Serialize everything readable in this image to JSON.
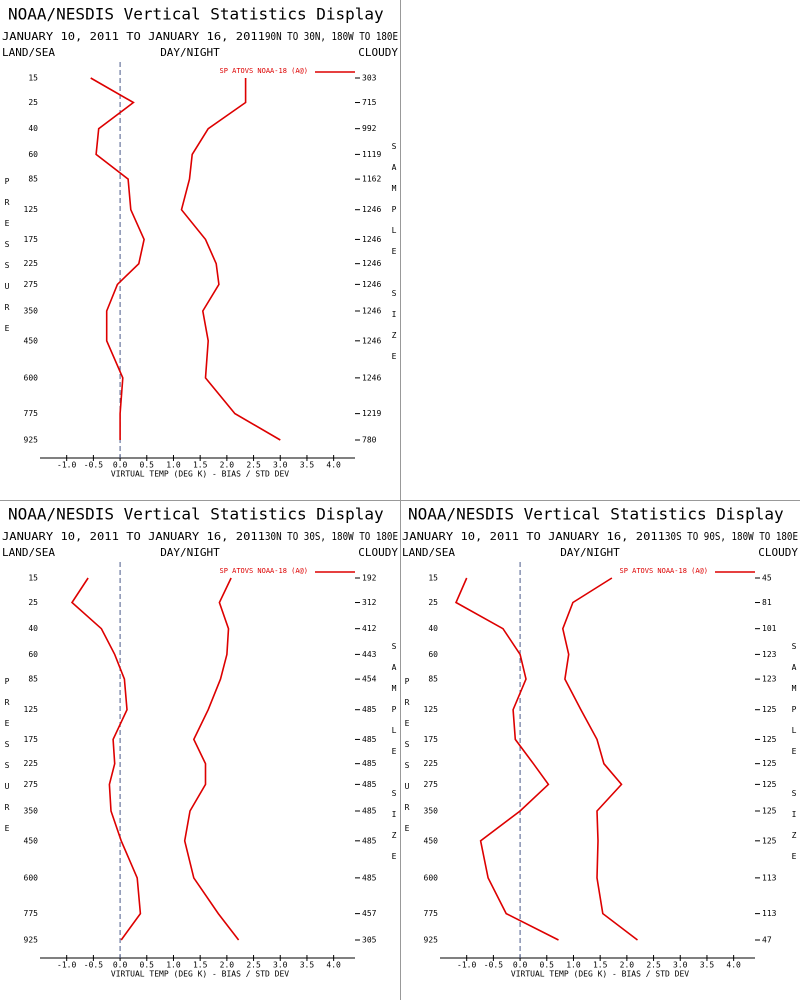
{
  "chart_data": [
    {
      "type": "line",
      "title": "NOAA/NESDIS Vertical Statistics Display",
      "date_range": "JANUARY 10, 2011 TO JANUARY 16, 2011",
      "region": "90N TO 30N, 180W TO 180E",
      "left_label": "LAND/SEA",
      "center_label": "DAY/NIGHT",
      "right_label": "CLOUDY",
      "y_label": "PRESSURE",
      "y2_label": "SAMPLE SIZE",
      "x_label": "VIRTUAL TEMP (DEG K) - BIAS / STD DEV",
      "categories": [
        15,
        25,
        40,
        60,
        85,
        125,
        175,
        225,
        275,
        350,
        450,
        600,
        775,
        925
      ],
      "sample_size": [
        303,
        715,
        992,
        1119,
        1162,
        1246,
        1246,
        1246,
        1246,
        1246,
        1246,
        1246,
        1219,
        780
      ],
      "series": [
        {
          "name": "SP ATOVS NOAA-18 (A@)",
          "color": "#dd0000",
          "values": [
            -0.55,
            0.25,
            -0.4,
            -0.45,
            0.15,
            0.2,
            0.45,
            0.35,
            -0.05,
            -0.25,
            -0.25,
            0.05,
            0.0,
            0.0
          ]
        },
        {
          "color": "#dd0000",
          "values": [
            2.35,
            2.35,
            1.65,
            1.35,
            1.3,
            1.15,
            1.6,
            1.8,
            1.85,
            1.55,
            1.65,
            1.6,
            2.15,
            3.0
          ]
        }
      ],
      "xlim": [
        -1.5,
        4.4
      ],
      "xticks": [
        {
          "value": -1,
          "label": "-1.0"
        },
        -0.5,
        {
          "value": 0,
          "label": "0.0"
        },
        0.5,
        {
          "value": 1,
          "label": "1.0"
        },
        1.5,
        {
          "value": 2,
          "label": "2.0"
        },
        2.5,
        {
          "value": 3,
          "label": "3.0"
        },
        3.5,
        {
          "value": 4,
          "label": "4.0"
        }
      ]
    },
    {
      "type": "line",
      "title": "NOAA/NESDIS Vertical Statistics Display",
      "date_range": "JANUARY 10, 2011 TO JANUARY 16, 2011",
      "region": "30N TO 30S, 180W TO 180E",
      "left_label": "LAND/SEA",
      "center_label": "DAY/NIGHT",
      "right_label": "CLOUDY",
      "y_label": "PRESSURE",
      "y2_label": "SAMPLE SIZE",
      "x_label": "VIRTUAL TEMP (DEG K) - BIAS / STD DEV",
      "categories": [
        15,
        25,
        40,
        60,
        85,
        125,
        175,
        225,
        275,
        350,
        450,
        600,
        775,
        925
      ],
      "sample_size": [
        192,
        312,
        412,
        443,
        454,
        485,
        485,
        485,
        485,
        485,
        485,
        485,
        457,
        305
      ],
      "series": [
        {
          "name": "SP ATOVS NOAA-18 (A@)",
          "color": "#dd0000",
          "values": [
            -0.6,
            -0.9,
            -0.35,
            -0.1,
            0.08,
            0.13,
            -0.13,
            -0.1,
            -0.2,
            -0.17,
            0.02,
            0.32,
            0.38,
            0.02
          ]
        },
        {
          "color": "#dd0000",
          "values": [
            2.08,
            1.86,
            2.03,
            2.0,
            1.88,
            1.65,
            1.38,
            1.6,
            1.6,
            1.31,
            1.21,
            1.38,
            1.84,
            2.22
          ]
        }
      ],
      "xlim": [
        -1.5,
        4.4
      ],
      "xticks": [
        {
          "value": -1,
          "label": "-1.0"
        },
        -0.5,
        {
          "value": 0,
          "label": "0.0"
        },
        0.5,
        {
          "value": 1,
          "label": "1.0"
        },
        1.5,
        {
          "value": 2,
          "label": "2.0"
        },
        2.5,
        {
          "value": 3,
          "label": "3.0"
        },
        3.5,
        {
          "value": 4,
          "label": "4.0"
        }
      ]
    },
    {
      "type": "line",
      "title": "NOAA/NESDIS Vertical Statistics Display",
      "date_range": "JANUARY 10, 2011 TO JANUARY 16, 2011",
      "region": "30S TO 90S, 180W TO 180E",
      "left_label": "LAND/SEA",
      "center_label": "DAY/NIGHT",
      "right_label": "CLOUDY",
      "y_label": "PRESSURE",
      "y2_label": "SAMPLE SIZE",
      "x_label": "VIRTUAL TEMP (DEG K) - BIAS / STD DEV",
      "categories": [
        15,
        25,
        40,
        60,
        85,
        125,
        175,
        225,
        275,
        350,
        450,
        600,
        775,
        925
      ],
      "sample_size": [
        45,
        81,
        101,
        123,
        123,
        125,
        125,
        125,
        125,
        125,
        125,
        113,
        113,
        47
      ],
      "series": [
        {
          "name": "SP ATOVS NOAA-18 (A@)",
          "color": "#dd0000",
          "values": [
            -1.0,
            -1.2,
            -0.32,
            0.0,
            0.11,
            -0.13,
            -0.09,
            0.25,
            0.53,
            0.0,
            -0.74,
            -0.6,
            -0.26,
            0.72
          ]
        },
        {
          "color": "#dd0000",
          "values": [
            1.72,
            0.99,
            0.8,
            0.91,
            0.84,
            1.14,
            1.44,
            1.57,
            1.9,
            1.44,
            1.46,
            1.44,
            1.55,
            2.2
          ]
        }
      ],
      "xlim": [
        -1.5,
        4.4
      ],
      "xticks": [
        {
          "value": -1,
          "label": "-1.0"
        },
        -0.5,
        {
          "value": 0,
          "label": "0.0"
        },
        0.5,
        {
          "value": 1,
          "label": "1.0"
        },
        1.5,
        {
          "value": 2,
          "label": "2.0"
        },
        2.5,
        {
          "value": 3,
          "label": "3.0"
        },
        3.5,
        {
          "value": 4,
          "label": "4.0"
        }
      ]
    }
  ]
}
